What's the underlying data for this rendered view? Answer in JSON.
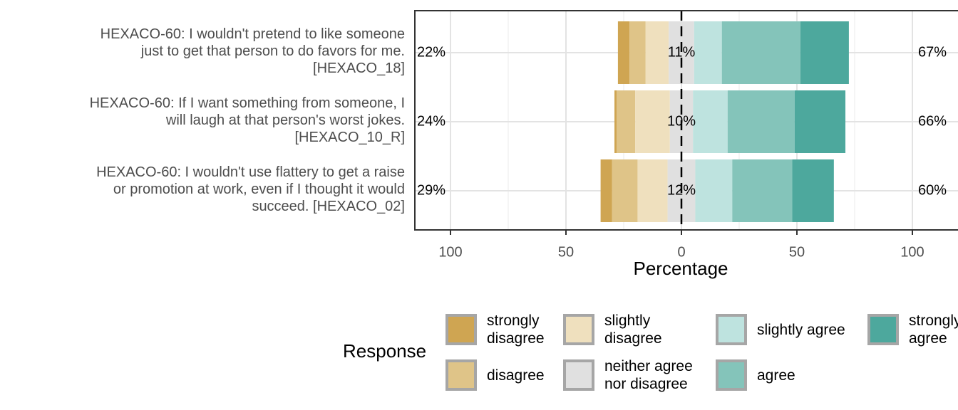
{
  "chart_data": {
    "type": "bar",
    "subtype": "diverging-stacked-likert",
    "xlabel": "Percentage",
    "xlim": [
      -115,
      115
    ],
    "xticks": [
      -100,
      -50,
      0,
      50,
      100
    ],
    "xtick_labels": [
      "100",
      "50",
      "0",
      "50",
      "100"
    ],
    "grid": true,
    "legend_position": "bottom",
    "legend_title": "Response",
    "levels": [
      "strongly disagree",
      "disagree",
      "slightly disagree",
      "neither agree nor disagree",
      "slightly agree",
      "agree",
      "strongly agree"
    ],
    "level_labels": [
      "strongly\ndisagree",
      "disagree",
      "slightly\ndisagree",
      "neither agree\nnor disagree",
      "slightly agree",
      "agree",
      "strongly agree"
    ],
    "colors": [
      "#CFA552",
      "#DFC488",
      "#EFE0BE",
      "#E0E0E0",
      "#BEE3DF",
      "#84C4BA",
      "#4DA89D"
    ],
    "categories": [
      "HEXACO-60: I wouldn't pretend to like someone just to get that person to do favors for me. [HEXACO_18]",
      "HEXACO-60: If I want something from someone, I will laugh at that person's worst jokes. [HEXACO_10_R]",
      "HEXACO-60: I wouldn't use flattery to get a raise or promotion at work, even if I thought it would succeed. [HEXACO_02]"
    ],
    "category_lines": [
      [
        "HEXACO-60: I wouldn't pretend to like someone",
        "just to get that person to do favors for me.",
        "[HEXACO_18]"
      ],
      [
        "HEXACO-60: If I want something from someone, I",
        "will laugh at that person's worst jokes.",
        "[HEXACO_10_R]"
      ],
      [
        "HEXACO-60: I wouldn't use flattery to get a raise",
        "or promotion at work, even if I thought it would",
        "succeed. [HEXACO_02]"
      ]
    ],
    "series": [
      {
        "name": "strongly disagree",
        "values": [
          5,
          1,
          5
        ]
      },
      {
        "name": "disagree",
        "values": [
          7,
          8,
          11
        ]
      },
      {
        "name": "slightly disagree",
        "values": [
          10,
          15,
          13
        ]
      },
      {
        "name": "neither agree nor disagree",
        "values": [
          11,
          10,
          12
        ]
      },
      {
        "name": "slightly agree",
        "values": [
          12,
          15,
          16
        ]
      },
      {
        "name": "agree",
        "values": [
          34,
          29,
          26
        ]
      },
      {
        "name": "strongly agree",
        "values": [
          21,
          22,
          18
        ]
      }
    ],
    "left_labels": [
      "22%",
      "24%",
      "29%"
    ],
    "center_labels": [
      "11%",
      "10%",
      "12%"
    ],
    "right_labels": [
      "67%",
      "66%",
      "60%"
    ]
  }
}
